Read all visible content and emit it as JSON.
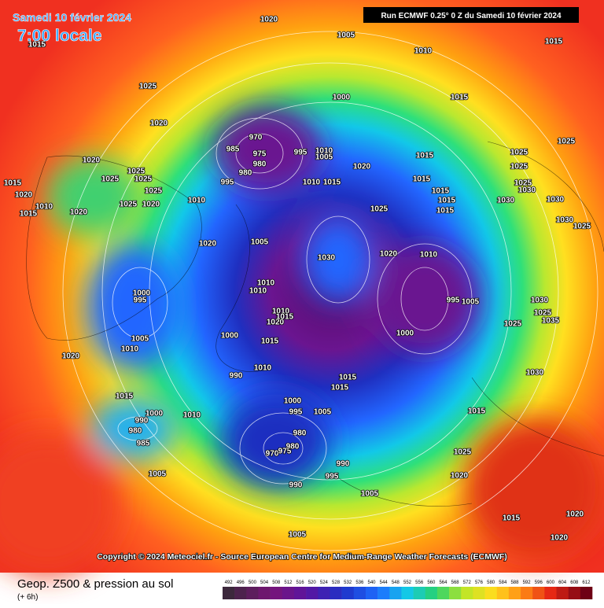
{
  "header": {
    "date": "Samedi 10 février 2024",
    "time": "7:00 locale",
    "run": "Run ECMWF 0.25° 0 Z du Samedi 10 février 2024"
  },
  "map": {
    "pressure_labels": [
      "1020",
      "1015",
      "1005",
      "1010",
      "1015",
      "1025",
      "1020",
      "1000",
      "1015",
      "1025",
      "970",
      "985",
      "975",
      "980",
      "995",
      "1010",
      "1005",
      "980",
      "995",
      "1010",
      "1015",
      "1020",
      "1015",
      "1025",
      "1025",
      "1020",
      "1025",
      "1025",
      "1025",
      "1015",
      "1020",
      "1025",
      "1025",
      "1030",
      "1015",
      "1015",
      "1030",
      "1030",
      "1010",
      "1015",
      "1020",
      "1025",
      "1020",
      "1010",
      "1025",
      "1015",
      "1015",
      "1020",
      "1005",
      "1030",
      "1020",
      "1010",
      "1030",
      "1025",
      "1000",
      "995",
      "1010",
      "1010",
      "1005",
      "1010",
      "1020",
      "1000",
      "1010",
      "1020",
      "1015",
      "1015",
      "1000",
      "995",
      "1005",
      "990",
      "1010",
      "1015",
      "1015",
      "1000",
      "995",
      "1005",
      "1015",
      "1010",
      "1000",
      "990",
      "980",
      "985",
      "980",
      "970",
      "975",
      "980",
      "1005",
      "990",
      "995",
      "990",
      "1015",
      "1025",
      "1020",
      "1005",
      "1015",
      "1020",
      "1005",
      "1020",
      "1030",
      "1025",
      "1035",
      "1025",
      "1030"
    ]
  },
  "footer": {
    "copyright": "Copyright © 2024 Meteociel.fr - Source European Centre for Medium-Range Weather Forecasts (ECMWF)",
    "title": "Geop. Z500 & pression au sol",
    "lead": "(+ 6h)"
  },
  "legend": {
    "levels": [
      492,
      496,
      500,
      504,
      508,
      512,
      516,
      520,
      524,
      528,
      532,
      536,
      540,
      544,
      548,
      552,
      556,
      560,
      564,
      568,
      572,
      576,
      580,
      584,
      588,
      592,
      596,
      600,
      604,
      608,
      612
    ]
  }
}
